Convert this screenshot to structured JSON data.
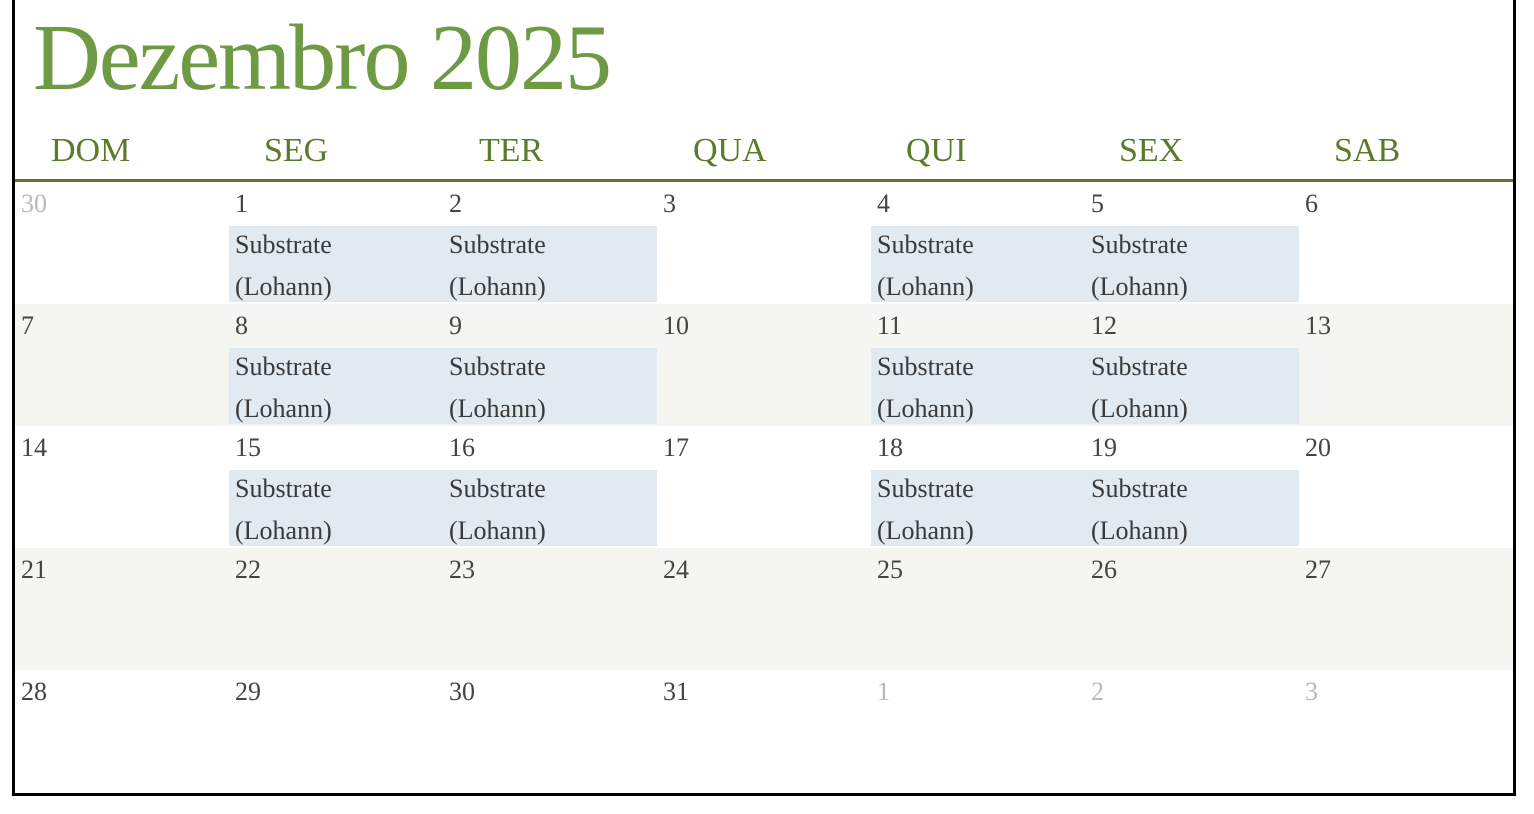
{
  "colors": {
    "title": "#6f9a44",
    "weekday": "#5b7a2b",
    "rule": "#5b7a2b",
    "day_in_month": "#444444",
    "day_out_of_month": "#b9b9b9",
    "week_band": "#f5f5f1",
    "event_background": "#e0eaf0"
  },
  "calendar": {
    "title": "Dezembro 2025",
    "weekdays": [
      "DOM",
      "SEG",
      "TER",
      "QUA",
      "QUI",
      "SEX",
      "SAB"
    ],
    "weeks": [
      [
        {
          "day": "30",
          "in_month": false,
          "event": null
        },
        {
          "day": "1",
          "in_month": true,
          "event": {
            "line1": "Substrate",
            "line2": "(Lohann)"
          }
        },
        {
          "day": "2",
          "in_month": true,
          "event": {
            "line1": "Substrate",
            "line2": "(Lohann)"
          }
        },
        {
          "day": "3",
          "in_month": true,
          "event": null
        },
        {
          "day": "4",
          "in_month": true,
          "event": {
            "line1": "Substrate",
            "line2": "(Lohann)"
          }
        },
        {
          "day": "5",
          "in_month": true,
          "event": {
            "line1": "Substrate",
            "line2": "(Lohann)"
          }
        },
        {
          "day": "6",
          "in_month": true,
          "event": null
        }
      ],
      [
        {
          "day": "7",
          "in_month": true,
          "event": null
        },
        {
          "day": "8",
          "in_month": true,
          "event": {
            "line1": "Substrate",
            "line2": "(Lohann)"
          }
        },
        {
          "day": "9",
          "in_month": true,
          "event": {
            "line1": "Substrate",
            "line2": "(Lohann)"
          }
        },
        {
          "day": "10",
          "in_month": true,
          "event": null
        },
        {
          "day": "11",
          "in_month": true,
          "event": {
            "line1": "Substrate",
            "line2": "(Lohann)"
          }
        },
        {
          "day": "12",
          "in_month": true,
          "event": {
            "line1": "Substrate",
            "line2": "(Lohann)"
          }
        },
        {
          "day": "13",
          "in_month": true,
          "event": null
        }
      ],
      [
        {
          "day": "14",
          "in_month": true,
          "event": null
        },
        {
          "day": "15",
          "in_month": true,
          "event": {
            "line1": "Substrate",
            "line2": "(Lohann)"
          }
        },
        {
          "day": "16",
          "in_month": true,
          "event": {
            "line1": "Substrate",
            "line2": "(Lohann)"
          }
        },
        {
          "day": "17",
          "in_month": true,
          "event": null
        },
        {
          "day": "18",
          "in_month": true,
          "event": {
            "line1": "Substrate",
            "line2": "(Lohann)"
          }
        },
        {
          "day": "19",
          "in_month": true,
          "event": {
            "line1": "Substrate",
            "line2": "(Lohann)"
          }
        },
        {
          "day": "20",
          "in_month": true,
          "event": null
        }
      ],
      [
        {
          "day": "21",
          "in_month": true,
          "event": null
        },
        {
          "day": "22",
          "in_month": true,
          "event": null
        },
        {
          "day": "23",
          "in_month": true,
          "event": null
        },
        {
          "day": "24",
          "in_month": true,
          "event": null
        },
        {
          "day": "25",
          "in_month": true,
          "event": null
        },
        {
          "day": "26",
          "in_month": true,
          "event": null
        },
        {
          "day": "27",
          "in_month": true,
          "event": null
        }
      ],
      [
        {
          "day": "28",
          "in_month": true,
          "event": null
        },
        {
          "day": "29",
          "in_month": true,
          "event": null
        },
        {
          "day": "30",
          "in_month": true,
          "event": null
        },
        {
          "day": "31",
          "in_month": true,
          "event": null
        },
        {
          "day": "1",
          "in_month": false,
          "event": null
        },
        {
          "day": "2",
          "in_month": false,
          "event": null
        },
        {
          "day": "3",
          "in_month": false,
          "event": null
        }
      ]
    ]
  }
}
